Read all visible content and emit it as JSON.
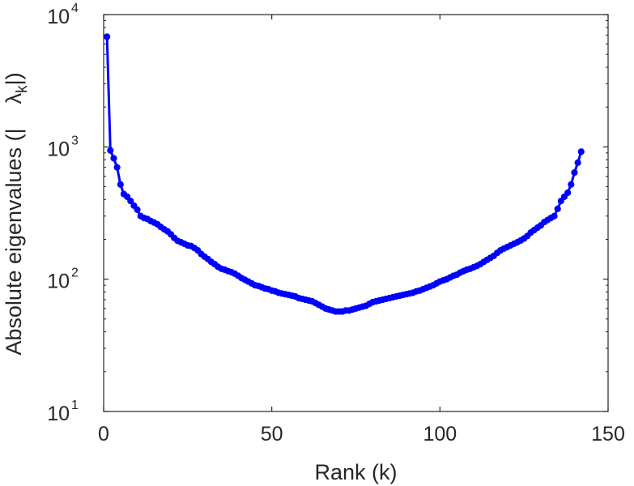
{
  "chart_data": {
    "type": "line",
    "title": "",
    "xlabel": "Rank (k)",
    "ylabel": "Absolute eigenvalues (|",
    "ylabel_symbol": "λ",
    "ylabel_subscript": "k",
    "ylabel_suffix": "|)",
    "xlim": [
      0,
      150
    ],
    "ylim": [
      10,
      10000
    ],
    "yscale": "log",
    "grid": false,
    "box": true,
    "xticks": [
      0,
      50,
      100,
      150
    ],
    "xtick_labels": [
      "0",
      "50",
      "100",
      "150"
    ],
    "yticks": [
      10,
      100,
      1000,
      10000
    ],
    "ytick_base": "10",
    "ytick_exponents": [
      "1",
      "2",
      "3",
      "4"
    ],
    "series": [
      {
        "color": "#0000ff",
        "marker": "circle",
        "x": [
          1,
          2,
          3,
          4,
          5,
          6,
          7,
          8,
          9,
          10,
          11,
          12,
          13,
          14,
          15,
          16,
          17,
          18,
          19,
          20,
          21,
          22,
          23,
          24,
          25,
          26,
          27,
          28,
          29,
          30,
          31,
          32,
          33,
          34,
          35,
          36,
          37,
          38,
          39,
          40,
          41,
          42,
          43,
          44,
          45,
          46,
          47,
          48,
          49,
          50,
          51,
          52,
          53,
          54,
          55,
          56,
          57,
          58,
          59,
          60,
          61,
          62,
          63,
          64,
          65,
          66,
          67,
          68,
          69,
          70,
          71,
          72,
          73,
          74,
          75,
          76,
          77,
          78,
          79,
          80,
          81,
          82,
          83,
          84,
          85,
          86,
          87,
          88,
          89,
          90,
          91,
          92,
          93,
          94,
          95,
          96,
          97,
          98,
          99,
          100,
          101,
          102,
          103,
          104,
          105,
          106,
          107,
          108,
          109,
          110,
          111,
          112,
          113,
          114,
          115,
          116,
          117,
          118,
          119,
          120,
          121,
          122,
          123,
          124,
          125,
          126,
          127,
          128,
          129,
          130,
          131,
          132,
          133,
          134,
          135,
          136,
          137,
          138,
          139,
          140,
          141,
          142
        ],
        "y": [
          6800,
          940,
          820,
          700,
          520,
          440,
          420,
          390,
          360,
          335,
          300,
          290,
          285,
          275,
          268,
          260,
          248,
          238,
          230,
          218,
          205,
          195,
          190,
          185,
          180,
          178,
          172,
          165,
          155,
          148,
          142,
          135,
          130,
          124,
          120,
          118,
          115,
          113,
          110,
          106,
          102,
          99,
          96,
          93,
          90,
          89,
          87,
          85,
          84,
          82,
          81,
          79,
          78,
          77,
          76,
          75,
          74,
          72,
          71,
          70,
          69,
          68,
          66,
          64,
          62,
          60,
          59,
          58,
          57,
          57,
          57,
          58,
          58,
          59,
          60,
          61,
          62,
          63,
          65,
          67,
          68,
          69,
          70,
          71,
          72,
          73,
          74,
          75,
          76,
          77,
          78,
          79,
          81,
          82,
          84,
          86,
          88,
          90,
          93,
          96,
          98,
          100,
          103,
          106,
          108,
          112,
          115,
          118,
          120,
          123,
          126,
          130,
          135,
          140,
          145,
          150,
          158,
          165,
          170,
          175,
          180,
          185,
          190,
          196,
          203,
          212,
          225,
          235,
          245,
          255,
          270,
          280,
          290,
          300,
          340,
          390,
          420,
          450,
          520,
          640,
          760,
          920
        ]
      }
    ]
  }
}
